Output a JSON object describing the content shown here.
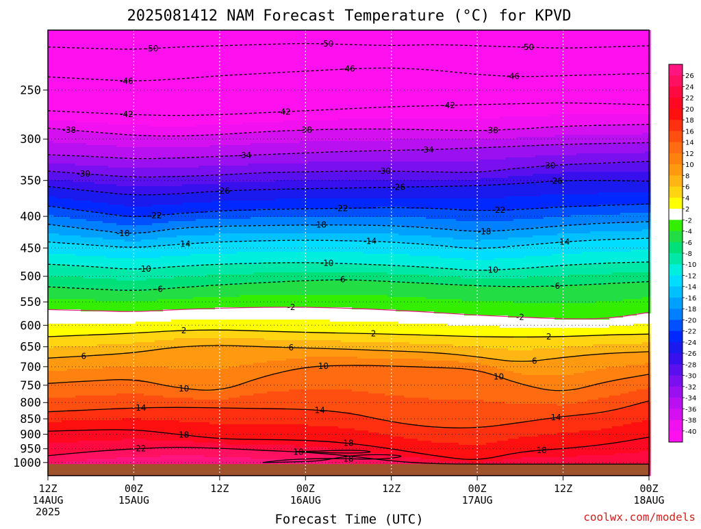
{
  "chart_data": {
    "type": "heatmap",
    "title": "2025081412 NAM Forecast Temperature (°C) for KPVD",
    "xlabel": "Forecast Time (UTC)",
    "ylabel": "",
    "credit": "coolwx.com/models",
    "x_ticks": [
      {
        "hours": 0,
        "line1": "12Z",
        "line2": "14AUG",
        "line3": "2025"
      },
      {
        "hours": 12,
        "line1": "00Z",
        "line2": "15AUG",
        "line3": ""
      },
      {
        "hours": 24,
        "line1": "12Z",
        "line2": "",
        "line3": ""
      },
      {
        "hours": 36,
        "line1": "00Z",
        "line2": "16AUG",
        "line3": ""
      },
      {
        "hours": 48,
        "line1": "12Z",
        "line2": "",
        "line3": ""
      },
      {
        "hours": 60,
        "line1": "00Z",
        "line2": "17AUG",
        "line3": ""
      },
      {
        "hours": 72,
        "line1": "12Z",
        "line2": "",
        "line3": ""
      },
      {
        "hours": 84,
        "line1": "00Z",
        "line2": "18AUG",
        "line3": ""
      }
    ],
    "y_axis": {
      "quantity": "pressure (hPa)",
      "scale": "log",
      "reversed": true,
      "range": [
        1050,
        200
      ]
    },
    "y_ticks": [
      250,
      300,
      350,
      400,
      450,
      500,
      550,
      600,
      650,
      700,
      750,
      800,
      850,
      900,
      950,
      1000
    ],
    "ground_below_hpa": 1006,
    "colorbar_labels": [
      26,
      24,
      22,
      20,
      18,
      16,
      14,
      12,
      10,
      8,
      6,
      4,
      2,
      -2,
      -4,
      -6,
      -8,
      -10,
      -12,
      -14,
      -16,
      -18,
      -20,
      -22,
      -24,
      -26,
      -28,
      -30,
      -32,
      -34,
      -36,
      -38,
      -40
    ],
    "colorbar_colors": [
      "#ff1480",
      "#ff1060",
      "#ff0a40",
      "#ff0822",
      "#ff1010",
      "#ff3010",
      "#ff4f10",
      "#ff6b10",
      "#ff8210",
      "#ff9a10",
      "#ffb514",
      "#ffd410",
      "#ffff00",
      "#ffffff",
      "#33ee00",
      "#22dd44",
      "#00e078",
      "#00e8a8",
      "#00eedd",
      "#00ddff",
      "#00c0ff",
      "#00a0ff",
      "#0080ff",
      "#0050ff",
      "#0028ff",
      "#1a1aee",
      "#3810ee",
      "#5a10ee",
      "#7a10f0",
      "#9a10f0",
      "#b810f0",
      "#d410f0",
      "#f010f0",
      "#ff10ee"
    ],
    "ground_color": "#a0522d",
    "times_hours": [
      0,
      6,
      12,
      18,
      24,
      30,
      36,
      42,
      48,
      54,
      60,
      66,
      72,
      78,
      84
    ],
    "isotherms": [
      {
        "temp": -50,
        "p": [
          213,
          214,
          215,
          213,
          212,
          211,
          210,
          211,
          212,
          211,
          212,
          213,
          214,
          213,
          212
        ],
        "labels": [
          {
            "hours": 14.5
          },
          {
            "hours": 39
          },
          {
            "hours": 67
          }
        ]
      },
      {
        "temp": -46,
        "p": [
          238,
          240,
          242,
          240,
          237,
          235,
          233,
          231,
          230,
          232,
          236,
          238,
          237,
          236,
          235
        ],
        "labels": [
          {
            "hours": 11
          },
          {
            "hours": 42
          },
          {
            "hours": 65
          }
        ]
      },
      {
        "temp": -42,
        "p": [
          270,
          272,
          274,
          275,
          274,
          272,
          270,
          268,
          266,
          265,
          264,
          263,
          262,
          263,
          264
        ],
        "labels": [
          {
            "hours": 11
          },
          {
            "hours": 33
          },
          {
            "hours": 56
          }
        ]
      },
      {
        "temp": -38,
        "p": [
          288,
          292,
          296,
          297,
          295,
          292,
          290,
          289,
          289,
          290,
          291,
          289,
          286,
          285,
          284
        ],
        "labels": [
          {
            "hours": 3
          },
          {
            "hours": 36
          },
          {
            "hours": 62
          }
        ]
      },
      {
        "temp": -34,
        "p": [
          318,
          320,
          323,
          322,
          320,
          318,
          316,
          314,
          313,
          312,
          310,
          308,
          306,
          305,
          304
        ],
        "labels": [
          {
            "hours": 27.5
          },
          {
            "hours": 53
          }
        ]
      },
      {
        "temp": -30,
        "p": [
          338,
          342,
          346,
          345,
          343,
          340,
          339,
          338,
          338,
          339,
          340,
          334,
          330,
          328,
          326
        ],
        "labels": [
          {
            "hours": 5
          },
          {
            "hours": 47
          },
          {
            "hours": 70
          }
        ]
      },
      {
        "temp": -26,
        "p": [
          358,
          364,
          370,
          368,
          364,
          362,
          361,
          360,
          359,
          358,
          357,
          354,
          350,
          350,
          351
        ],
        "labels": [
          {
            "hours": 24.5
          },
          {
            "hours": 49
          },
          {
            "hours": 71
          }
        ]
      },
      {
        "temp": -22,
        "p": [
          385,
          393,
          402,
          396,
          392,
          390,
          389,
          388,
          387,
          388,
          392,
          390,
          386,
          384,
          382
        ],
        "labels": [
          {
            "hours": 15
          },
          {
            "hours": 41
          },
          {
            "hours": 63
          }
        ]
      },
      {
        "temp": -18,
        "p": [
          412,
          420,
          428,
          418,
          415,
          414,
          413,
          413,
          414,
          418,
          424,
          420,
          414,
          410,
          408
        ],
        "labels": [
          {
            "hours": 10.5
          },
          {
            "hours": 38
          },
          {
            "hours": 61
          }
        ]
      },
      {
        "temp": -14,
        "p": [
          440,
          445,
          450,
          444,
          440,
          438,
          437,
          438,
          440,
          445,
          452,
          446,
          440,
          436,
          434
        ],
        "labels": [
          {
            "hours": 19
          },
          {
            "hours": 45
          },
          {
            "hours": 72
          }
        ]
      },
      {
        "temp": -10,
        "p": [
          478,
          482,
          488,
          482,
          478,
          476,
          475,
          477,
          480,
          484,
          490,
          486,
          480,
          476,
          474
        ],
        "labels": [
          {
            "hours": 13.5
          },
          {
            "hours": 39
          },
          {
            "hours": 62
          }
        ]
      },
      {
        "temp": -6,
        "p": [
          520,
          524,
          528,
          522,
          516,
          512,
          508,
          506,
          510,
          514,
          518,
          520,
          518,
          514,
          510
        ],
        "labels": [
          {
            "hours": 15.5
          },
          {
            "hours": 41
          },
          {
            "hours": 71
          }
        ]
      },
      {
        "temp": -2,
        "p": [
          566,
          568,
          571,
          566,
          563,
          561,
          561,
          563,
          567,
          572,
          578,
          582,
          586,
          586,
          572
        ],
        "labels": [
          {
            "hours": 34
          },
          {
            "hours": 66
          }
        ]
      },
      {
        "temp": 2,
        "p": [
          626,
          622,
          618,
          612,
          610,
          613,
          616,
          618,
          620,
          623,
          626,
          627,
          626,
          622,
          620
        ],
        "labels": [
          {
            "hours": 19
          },
          {
            "hours": 45.5
          },
          {
            "hours": 70
          }
        ]
      },
      {
        "temp": 6,
        "p": [
          678,
          672,
          665,
          650,
          646,
          650,
          653,
          656,
          660,
          664,
          674,
          690,
          676,
          666,
          662
        ],
        "labels": [
          {
            "hours": 5
          },
          {
            "hours": 34
          },
          {
            "hours": 68
          }
        ]
      },
      {
        "temp": 10,
        "p": [
          745,
          738,
          732,
          758,
          768,
          726,
          700,
          696,
          698,
          702,
          706,
          748,
          772,
          740,
          720
        ],
        "labels": [
          {
            "hours": 19
          },
          {
            "hours": 38.5
          },
          {
            "hours": 63
          }
        ]
      },
      {
        "temp": 14,
        "p": [
          828,
          822,
          816,
          814,
          816,
          818,
          820,
          830,
          860,
          878,
          880,
          862,
          842,
          830,
          795
        ],
        "labels": [
          {
            "hours": 13
          },
          {
            "hours": 38
          },
          {
            "hours": 71
          }
        ]
      },
      {
        "temp": 18,
        "p": [
          890,
          886,
          884,
          900,
          916,
          918,
          920,
          930,
          950,
          975,
          995,
          960,
          950,
          935,
          910
        ],
        "labels": [
          {
            "hours": 19
          },
          {
            "hours": 42
          },
          {
            "hours": 69
          }
        ]
      },
      {
        "temp": 22,
        "p": [
          975,
          960,
          950,
          944,
          948,
          956,
          962,
          975,
          995,
          1005,
          1008,
          1008,
          1008,
          1008,
          1008
        ],
        "labels": [
          {
            "hours": 13
          }
        ]
      }
    ],
    "isotherm_18_loops": [
      {
        "hours": [
          38,
          41,
          44,
          45.5,
          43,
          39,
          36,
          34,
          38
        ],
        "p": [
          958,
          955,
          956,
          962,
          966,
          964,
          962,
          960,
          958
        ],
        "labels": [
          {
            "hours": 35
          }
        ]
      },
      {
        "hours": [
          30,
          33,
          38,
          42,
          45,
          48,
          50,
          46,
          42,
          38,
          34,
          30
        ],
        "p": [
          1000,
          990,
          985,
          986,
          988,
          985,
          975,
          970,
          975,
          995,
          998,
          1000
        ],
        "labels": [
          {
            "hours": 42
          }
        ]
      }
    ]
  }
}
